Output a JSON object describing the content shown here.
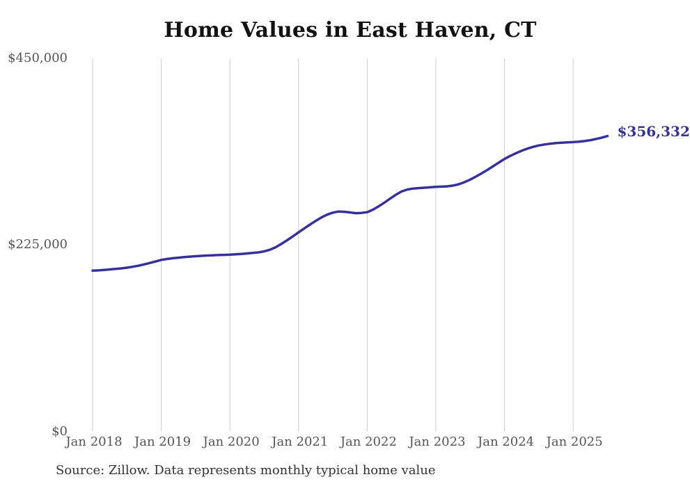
{
  "title": "Home Values in East Haven, CT",
  "source_note": "Source: Zillow. Data represents monthly typical home value",
  "colors": {
    "line": "#35309b",
    "end_label": "#35309b",
    "grid": "#cccccc",
    "tick_text": "#555555",
    "title_text": "#111111",
    "source_text": "#333333",
    "background": "#ffffff"
  },
  "chart_data": {
    "type": "line",
    "title": "Home Values in East Haven, CT",
    "xlabel": "",
    "ylabel": "",
    "legend": "none",
    "grid": "vertical-only",
    "x_start_month": "Jan 2018",
    "x_frequency": "monthly",
    "x_tick_labels": [
      "Jan 2018",
      "Jan 2019",
      "Jan 2020",
      "Jan 2021",
      "Jan 2022",
      "Jan 2023",
      "Jan 2024",
      "Jan 2025"
    ],
    "y_ticks": [
      0,
      225000,
      450000
    ],
    "y_tick_labels": [
      "$0",
      "$225,000",
      "$450,000"
    ],
    "ylim": [
      0,
      450000
    ],
    "end_label": "$356,332",
    "last_value": 356332,
    "series": [
      {
        "name": "Monthly typical home value",
        "values": [
          193900,
          194300,
          194800,
          195400,
          196000,
          196700,
          197500,
          198600,
          199900,
          201500,
          203200,
          205000,
          206900,
          208000,
          208900,
          209600,
          210300,
          210900,
          211400,
          211800,
          212200,
          212500,
          212800,
          213000,
          213200,
          213600,
          214100,
          214700,
          215300,
          216000,
          217200,
          219200,
          222200,
          226200,
          230700,
          235400,
          240100,
          244800,
          249500,
          254000,
          258200,
          261500,
          264000,
          265300,
          265000,
          264200,
          263300,
          263600,
          264500,
          267500,
          271500,
          276000,
          280800,
          285500,
          289500,
          291800,
          293000,
          293600,
          294000,
          294500,
          295100,
          295300,
          295700,
          296600,
          298200,
          300700,
          303800,
          307400,
          311300,
          315500,
          319900,
          324300,
          328700,
          332300,
          335600,
          338600,
          341200,
          343300,
          345000,
          346200,
          347100,
          347800,
          348300,
          348700,
          349000,
          349500,
          350300,
          351400,
          352800,
          354500,
          356332
        ]
      }
    ],
    "source_note": "Source: Zillow. Data represents monthly typical home value"
  }
}
